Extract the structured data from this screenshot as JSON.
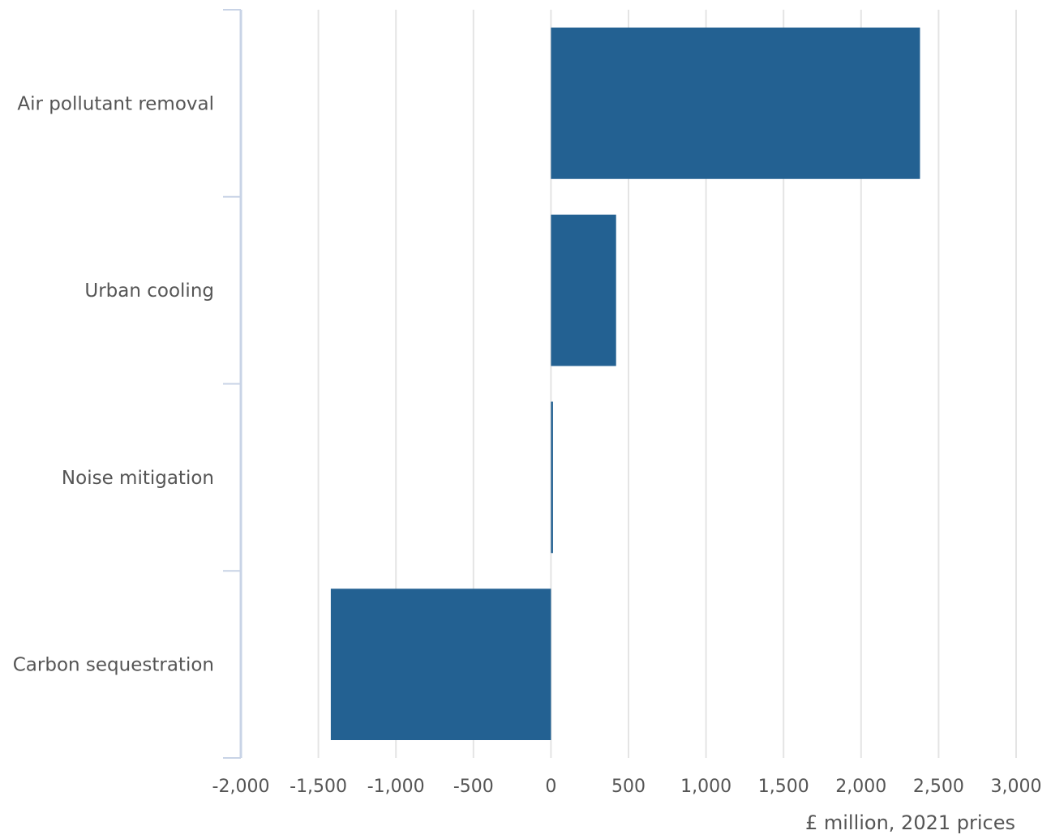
{
  "chart_data": {
    "type": "bar",
    "orientation": "horizontal",
    "title": "",
    "xlabel": "£ million, 2021 prices",
    "ylabel": "",
    "categories": [
      "Air pollutant removal",
      "Urban cooling",
      "Noise mitigation",
      "Carbon sequestration"
    ],
    "values": [
      2380,
      420,
      10,
      -1420
    ],
    "xlim": [
      -2000,
      3000
    ],
    "ticks": [
      -2000,
      -1500,
      -1000,
      -500,
      0,
      500,
      1000,
      1500,
      2000,
      2500,
      3000
    ],
    "tick_labels": [
      "-2,000",
      "-1,500",
      "-1,000",
      "-500",
      "0",
      "500",
      "1,000",
      "1,500",
      "2,000",
      "2,500",
      "3,000"
    ],
    "grid": "vertical",
    "legend": "none",
    "colors": {
      "bar": "#236192",
      "grid": "#e4e4e4",
      "axis": "#c8d3e6",
      "text": "#555555"
    }
  }
}
